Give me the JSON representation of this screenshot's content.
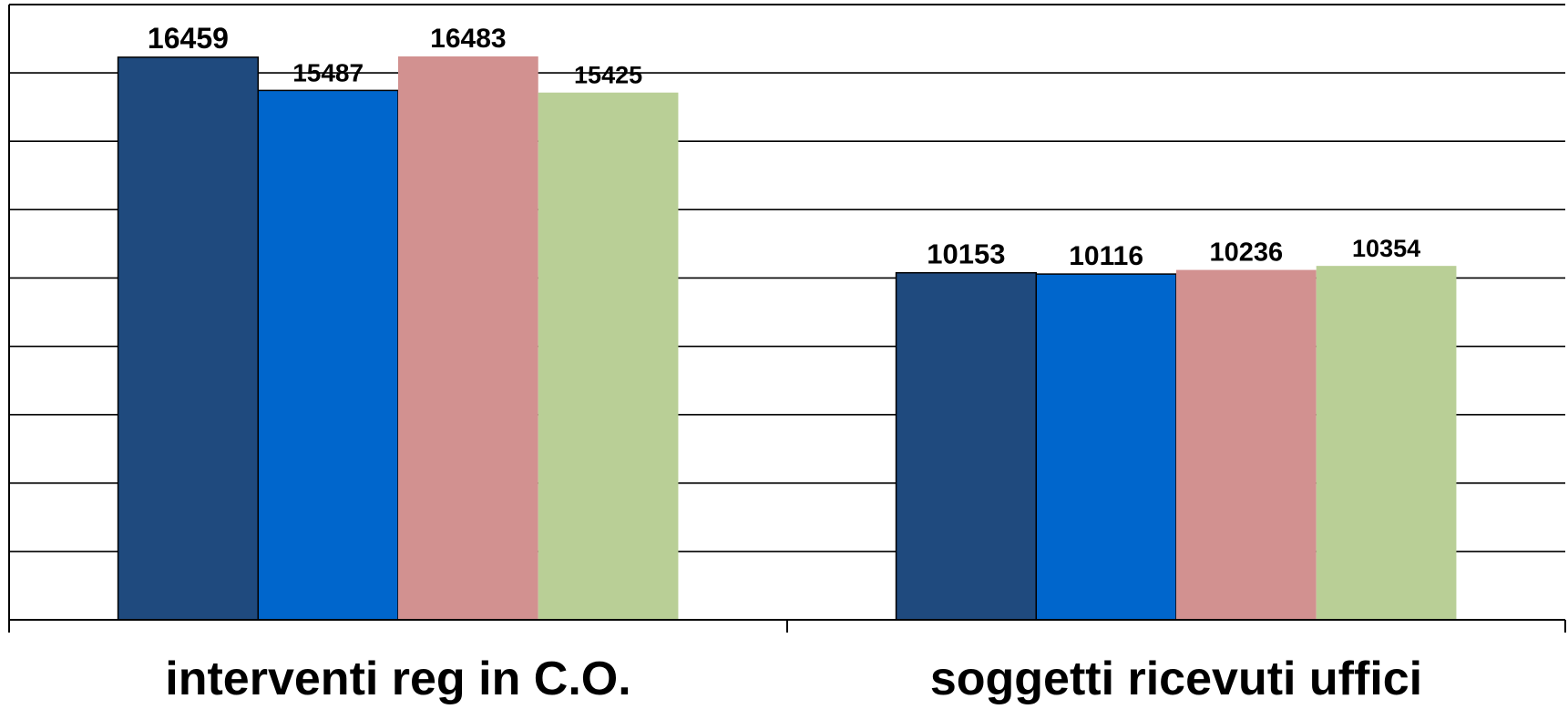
{
  "chart_data": {
    "type": "bar",
    "categories": [
      "interventi reg in C.O.",
      "soggetti ricevuti uffici"
    ],
    "series": [
      {
        "values": [
          16459,
          10153
        ],
        "color": "#1F4A7E"
      },
      {
        "values": [
          15487,
          10116
        ],
        "color": "#0066CC"
      },
      {
        "values": [
          16483,
          10236
        ],
        "color": "#D29190"
      },
      {
        "values": [
          15425,
          10354
        ],
        "color": "#B9CF96"
      }
    ],
    "ylim": [
      0,
      18000
    ],
    "grid": true,
    "legend": "none"
  }
}
